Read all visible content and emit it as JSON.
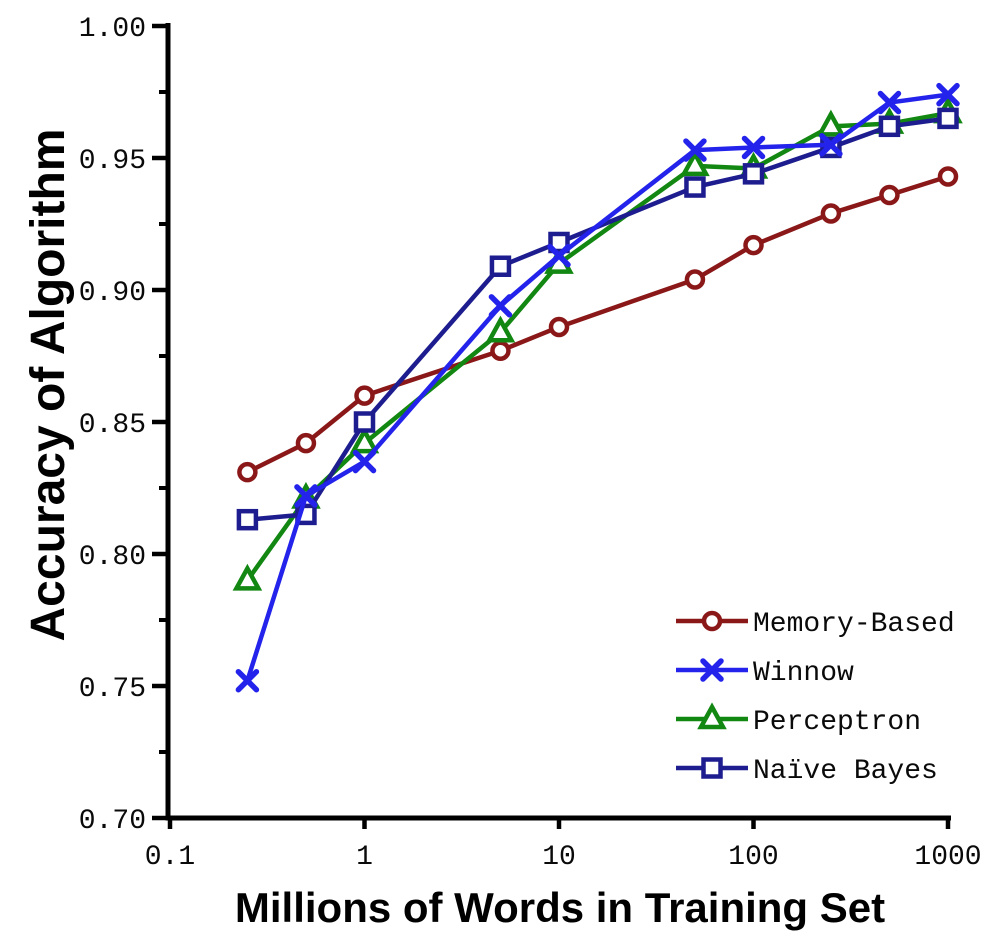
{
  "chart_data": {
    "type": "line",
    "title": "",
    "xlabel": "Millions of Words in Training Set",
    "ylabel": "Accuracy of Algorithm",
    "x_scale": "log",
    "xlim": [
      0.1,
      1000
    ],
    "ylim": [
      0.7,
      1.0
    ],
    "x_ticks": [
      0.1,
      1,
      10,
      100,
      1000
    ],
    "x_tick_labels": [
      "0.1",
      "1",
      "10",
      "100",
      "1000"
    ],
    "y_ticks": [
      1.0,
      0.95,
      0.9,
      0.85,
      0.8,
      0.75,
      0.7
    ],
    "y_tick_labels": [
      "1.00",
      "0.95",
      "0.90",
      "0.85",
      "0.80",
      "0.75",
      "0.70"
    ],
    "y_minor_ticks": [
      0.975,
      0.925,
      0.875,
      0.825,
      0.775,
      0.725
    ],
    "grid": false,
    "legend_position": "lower right",
    "axis_color": "#000000",
    "x": [
      0.25,
      0.5,
      1,
      5,
      10,
      50,
      100,
      250,
      500,
      1000
    ],
    "series": [
      {
        "name": "Memory-Based",
        "marker": "circle",
        "color": "#8B1818",
        "values": [
          0.831,
          0.842,
          0.86,
          0.877,
          0.886,
          0.904,
          0.917,
          0.929,
          0.936,
          0.943
        ]
      },
      {
        "name": "Perceptron",
        "marker": "triangle",
        "color": "#128712",
        "values": [
          0.79,
          0.821,
          0.842,
          0.884,
          0.91,
          0.947,
          0.946,
          0.962,
          0.963,
          0.967
        ]
      },
      {
        "name": "Naïve Bayes",
        "marker": "square",
        "color": "#1D1D8F",
        "values": [
          0.813,
          0.815,
          0.85,
          0.909,
          0.918,
          0.939,
          0.944,
          0.954,
          0.962,
          0.965
        ]
      },
      {
        "name": "Winnow",
        "marker": "x",
        "color": "#2323EB",
        "values": [
          0.752,
          0.822,
          0.835,
          0.894,
          0.913,
          0.953,
          0.954,
          0.955,
          0.971,
          0.974
        ]
      }
    ],
    "legend_order": [
      "Memory-Based",
      "Winnow",
      "Perceptron",
      "Naïve Bayes"
    ]
  }
}
